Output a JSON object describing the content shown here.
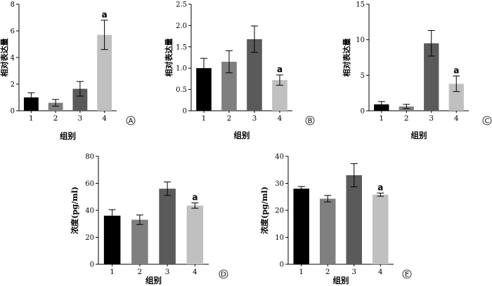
{
  "chart_data": [
    {
      "type": "bar",
      "panel": "A",
      "ylabel": "相对表达量",
      "xlabel": "组别",
      "categories": [
        "1",
        "2",
        "3",
        "4"
      ],
      "values": [
        1.0,
        0.6,
        1.65,
        5.7
      ],
      "errors": [
        0.35,
        0.25,
        0.55,
        1.1
      ],
      "colors": [
        "#000000",
        "#7f7f7f",
        "#5a5a5a",
        "#c0c0c0"
      ],
      "ylim": [
        0,
        8
      ],
      "yticks": [
        "0",
        "2",
        "4",
        "6",
        "8"
      ],
      "significance": [
        "",
        "",
        "",
        "a"
      ]
    },
    {
      "type": "bar",
      "panel": "B",
      "ylabel": "相对表达量",
      "xlabel": "组别",
      "categories": [
        "1",
        "2",
        "3",
        "4"
      ],
      "values": [
        1.0,
        1.15,
        1.68,
        0.72
      ],
      "errors": [
        0.23,
        0.26,
        0.31,
        0.12
      ],
      "colors": [
        "#000000",
        "#7f7f7f",
        "#5a5a5a",
        "#c0c0c0"
      ],
      "ylim": [
        0,
        2.5
      ],
      "yticks": [
        "0",
        "0.5",
        "1.0",
        "1.5",
        "2.0",
        "2.5"
      ],
      "significance": [
        "",
        "",
        "",
        "a"
      ]
    },
    {
      "type": "bar",
      "panel": "C",
      "ylabel": "相对表达量",
      "xlabel": "组别",
      "categories": [
        "1",
        "2",
        "3",
        "4"
      ],
      "values": [
        0.9,
        0.6,
        9.5,
        3.8
      ],
      "errors": [
        0.4,
        0.3,
        1.8,
        1.1
      ],
      "colors": [
        "#000000",
        "#7f7f7f",
        "#5a5a5a",
        "#c0c0c0"
      ],
      "ylim": [
        0,
        15
      ],
      "yticks": [
        "0",
        "5",
        "10",
        "15"
      ],
      "significance": [
        "",
        "",
        "",
        "a"
      ]
    },
    {
      "type": "bar",
      "panel": "D",
      "ylabel": "浓度(pg/ml)",
      "xlabel": "组别",
      "categories": [
        "1",
        "2",
        "3",
        "4"
      ],
      "values": [
        36,
        33,
        56,
        43.5
      ],
      "errors": [
        4.5,
        3.5,
        5,
        2
      ],
      "colors": [
        "#000000",
        "#7f7f7f",
        "#5a5a5a",
        "#c0c0c0"
      ],
      "ylim": [
        0,
        80
      ],
      "yticks": [
        "0",
        "20",
        "40",
        "60",
        "80"
      ],
      "significance": [
        "",
        "",
        "",
        "a"
      ]
    },
    {
      "type": "bar",
      "panel": "E",
      "ylabel": "浓度(pg/ml)",
      "xlabel": "组别",
      "categories": [
        "1",
        "2",
        "3",
        "4"
      ],
      "values": [
        28,
        24.3,
        33,
        25.8
      ],
      "errors": [
        0.8,
        1.2,
        4.3,
        0.6
      ],
      "colors": [
        "#000000",
        "#7f7f7f",
        "#5a5a5a",
        "#c0c0c0"
      ],
      "ylim": [
        0,
        40
      ],
      "yticks": [
        "0",
        "10",
        "20",
        "30",
        "40"
      ],
      "significance": [
        "",
        "",
        "",
        "a"
      ]
    }
  ]
}
